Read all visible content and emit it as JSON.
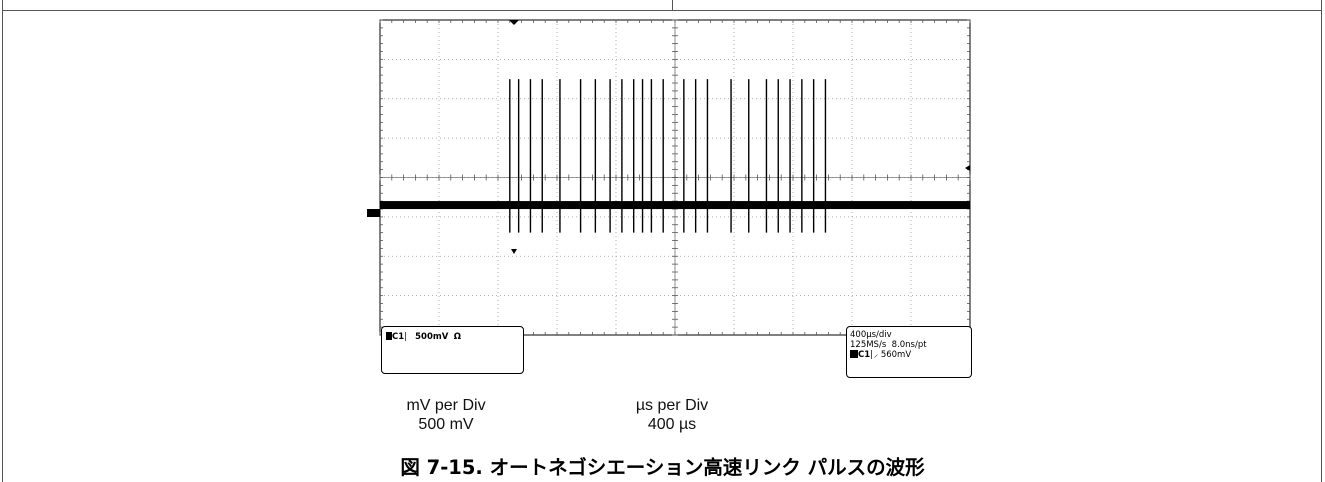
{
  "chart_data": {
    "type": "oscilloscope-trace",
    "grid": true,
    "grid_divisions": {
      "x": 10,
      "y": 8
    },
    "xlim_div": [
      0,
      10
    ],
    "ylim_div": [
      -4,
      4
    ],
    "baseline_div": -0.7,
    "pulse_times_div": [
      2.2,
      2.35,
      2.55,
      2.75,
      3.05,
      3.4,
      3.65,
      3.9,
      4.1,
      4.3,
      4.45,
      4.6,
      4.8,
      5.15,
      5.35,
      5.55,
      5.95,
      6.25,
      6.55,
      6.75,
      6.95,
      7.15,
      7.35,
      7.55
    ],
    "pulse_peak_div": 2.5,
    "pulse_trough_div": -1.4,
    "scale_info": {
      "channel_label": "C1",
      "channel_scale": "500mV",
      "channel_coupling": "Ω",
      "timebase": "400µs/div",
      "sample_rate": "125MS/s",
      "sample_interval": "8.0ns/pt",
      "trigger_channel": "C1",
      "trigger_level": "560mV"
    }
  },
  "annotations": {
    "vertical_scale_label": "mV per Div",
    "vertical_scale_value": "500 mV",
    "horizontal_scale_label": "µs per Div",
    "horizontal_scale_value": "400 µs"
  },
  "caption": "図 7-15. オートネゴシエーション高速リンク パルスの波形"
}
